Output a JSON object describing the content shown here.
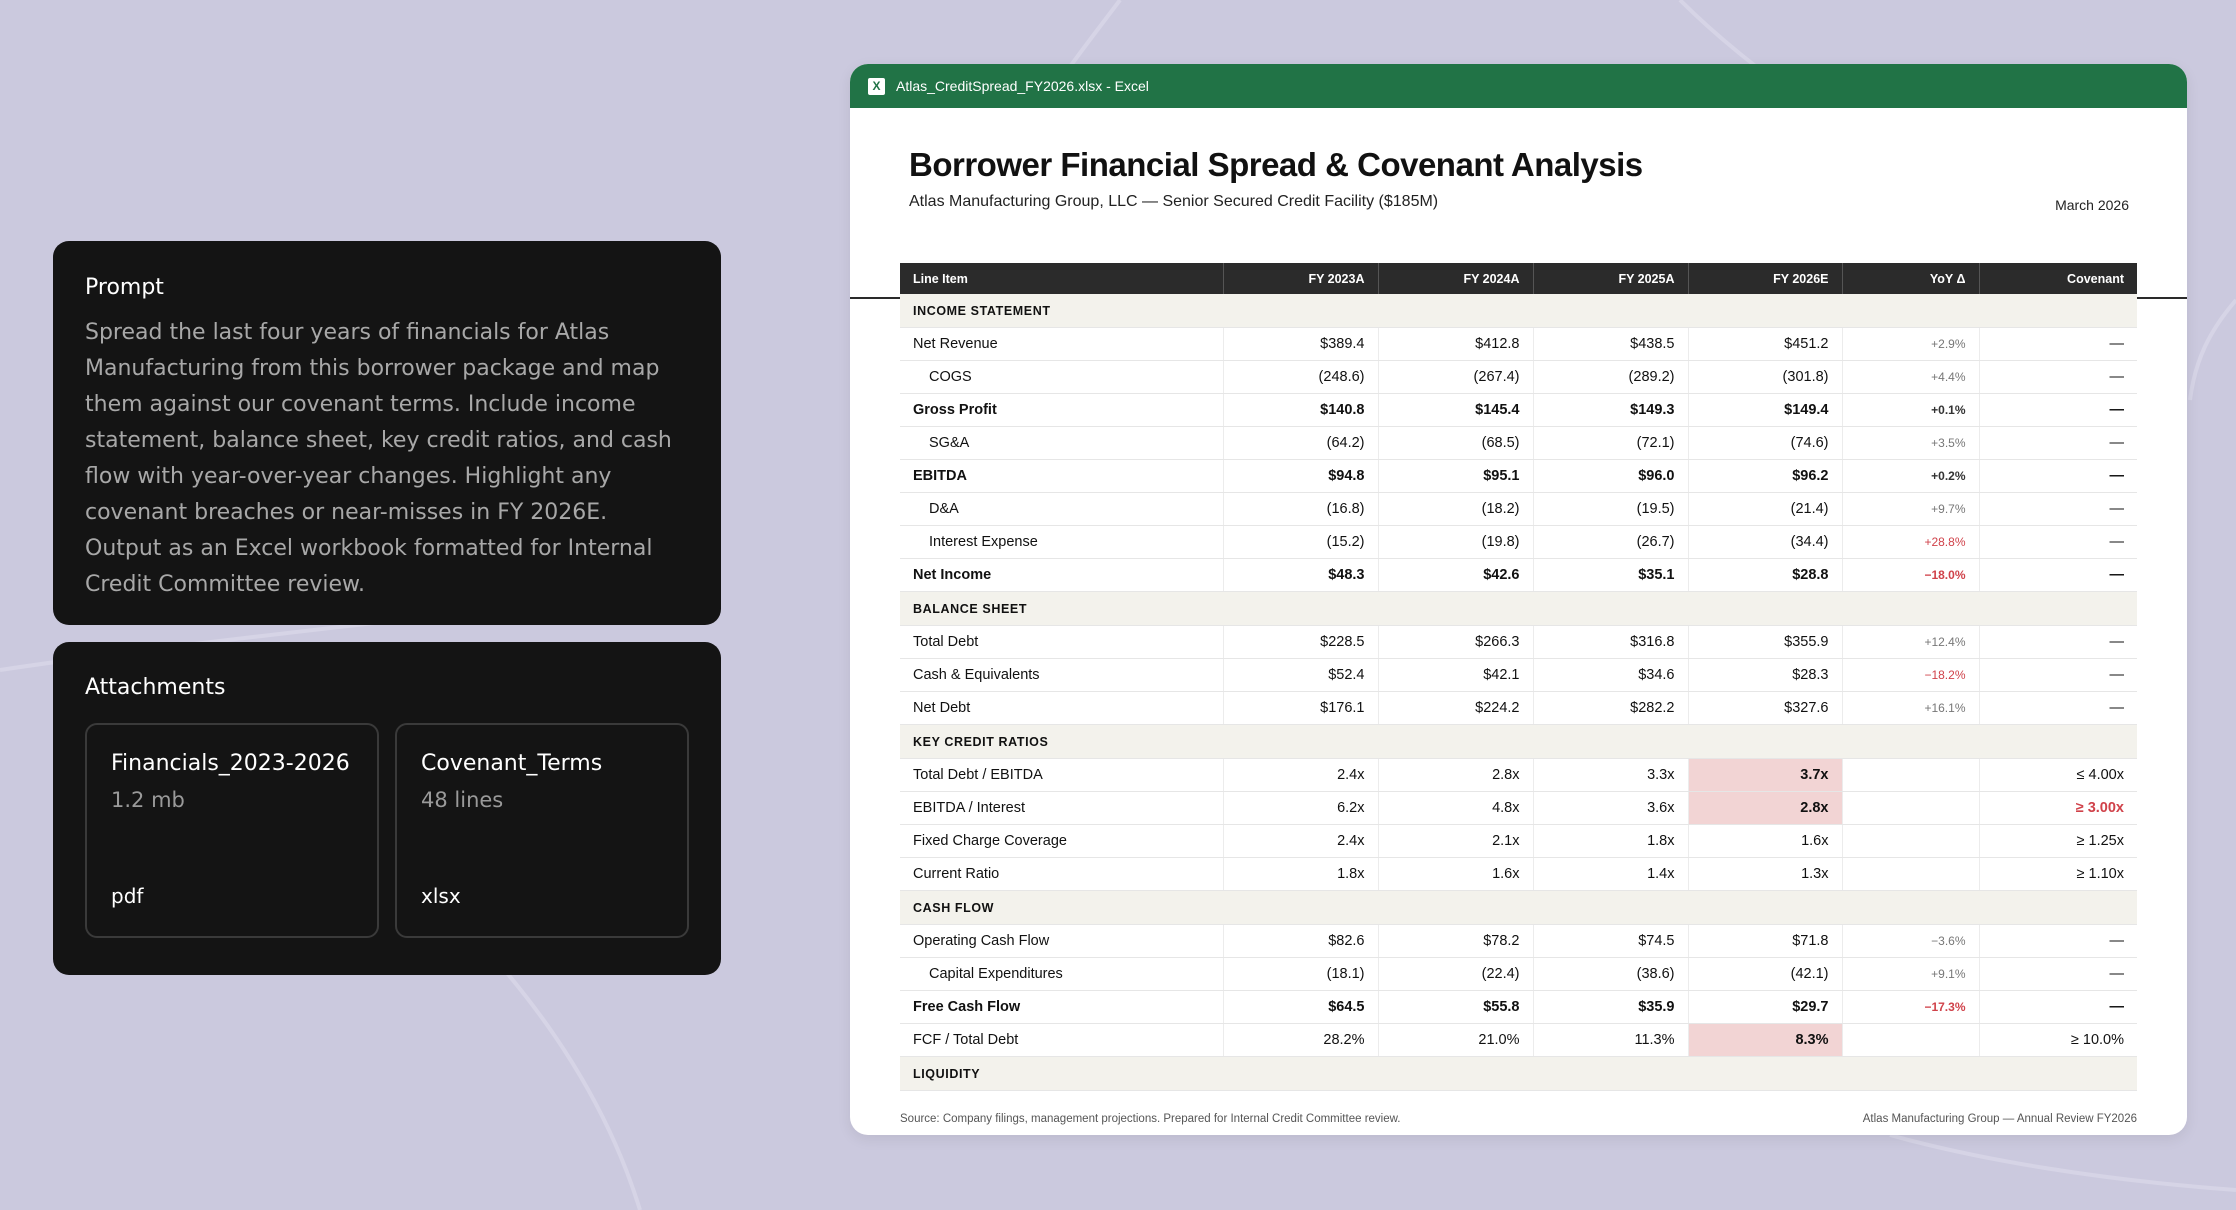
{
  "prompt": {
    "title": "Prompt",
    "text": "Spread the last four years of financials for Atlas Manufacturing from this borrower package and map them against our covenant terms. Include income statement, balance sheet, key credit ratios, and cash flow with year-over-year changes. Highlight any covenant breaches or near-misses in FY 2026E. Output as an Excel workbook formatted for Internal Credit Committee review."
  },
  "attachments": {
    "title": "Attachments",
    "items": [
      {
        "name": "Financials_2023-2026",
        "meta": "1.2 mb",
        "type": "pdf"
      },
      {
        "name": "Covenant_Terms",
        "meta": "48 lines",
        "type": "xlsx"
      }
    ]
  },
  "window": {
    "title": "Atlas_CreditSpread_FY2026.xlsx - Excel",
    "app_icon": "excel-icon",
    "brand_color": "#217346"
  },
  "doc": {
    "title": "Borrower Financial Spread & Covenant Analysis",
    "subtitle": "Atlas Manufacturing Group, LLC — Senior Secured Credit Facility ($185M)",
    "date": "March 2026"
  },
  "table": {
    "headers": [
      "Line Item",
      "FY 2023A",
      "FY 2024A",
      "FY 2025A",
      "FY 2026E",
      "YoY Δ",
      "Covenant"
    ],
    "rows": [
      {
        "kind": "section",
        "label": "INCOME STATEMENT"
      },
      {
        "kind": "row",
        "label": "Net Revenue",
        "values": [
          "$389.4",
          "$412.8",
          "$438.5",
          "$451.2"
        ],
        "yoy": "+2.9%",
        "covenant": "—"
      },
      {
        "kind": "indent",
        "label": "COGS",
        "values": [
          "(248.6)",
          "(267.4)",
          "(289.2)",
          "(301.8)"
        ],
        "yoy": "+4.4%",
        "covenant": "—"
      },
      {
        "kind": "bold",
        "label": "Gross Profit",
        "values": [
          "$140.8",
          "$145.4",
          "$149.3",
          "$149.4"
        ],
        "yoy": "+0.1%",
        "covenant": "—"
      },
      {
        "kind": "indent",
        "label": "SG&A",
        "values": [
          "(64.2)",
          "(68.5)",
          "(72.1)",
          "(74.6)"
        ],
        "yoy": "+3.5%",
        "covenant": "—"
      },
      {
        "kind": "bold",
        "label": "EBITDA",
        "values": [
          "$94.8",
          "$95.1",
          "$96.0",
          "$96.2"
        ],
        "yoy": "+0.2%",
        "covenant": "—"
      },
      {
        "kind": "indent",
        "label": "D&A",
        "values": [
          "(16.8)",
          "(18.2)",
          "(19.5)",
          "(21.4)"
        ],
        "yoy": "+9.7%",
        "covenant": "—"
      },
      {
        "kind": "indent",
        "label": "Interest Expense",
        "values": [
          "(15.2)",
          "(19.8)",
          "(26.7)",
          "(34.4)"
        ],
        "yoy": "+28.8%",
        "yoy_neg": true,
        "covenant": "—"
      },
      {
        "kind": "bold",
        "label": "Net Income",
        "values": [
          "$48.3",
          "$42.6",
          "$35.1",
          "$28.8"
        ],
        "yoy": "−18.0%",
        "yoy_neg": true,
        "covenant": "—"
      },
      {
        "kind": "section",
        "label": "BALANCE SHEET"
      },
      {
        "kind": "row",
        "label": "Total Debt",
        "values": [
          "$228.5",
          "$266.3",
          "$316.8",
          "$355.9"
        ],
        "yoy": "+12.4%",
        "covenant": "—"
      },
      {
        "kind": "row",
        "label": "Cash & Equivalents",
        "values": [
          "$52.4",
          "$42.1",
          "$34.6",
          "$28.3"
        ],
        "yoy": "−18.2%",
        "yoy_neg": true,
        "covenant": "—"
      },
      {
        "kind": "row",
        "label": "Net Debt",
        "values": [
          "$176.1",
          "$224.2",
          "$282.2",
          "$327.6"
        ],
        "yoy": "+16.1%",
        "covenant": "—"
      },
      {
        "kind": "section",
        "label": "KEY CREDIT RATIOS"
      },
      {
        "kind": "row",
        "label": "Total Debt / EBITDA",
        "values": [
          "2.4x",
          "2.8x",
          "3.3x",
          "3.7x"
        ],
        "yoy": "",
        "covenant": "≤ 4.00x",
        "breach26": true
      },
      {
        "kind": "row",
        "label": "EBITDA / Interest",
        "values": [
          "6.2x",
          "4.8x",
          "3.6x",
          "2.8x"
        ],
        "yoy": "",
        "covenant": "≥ 3.00x",
        "breach26": true,
        "cov_breach": true
      },
      {
        "kind": "row",
        "label": "Fixed Charge Coverage",
        "values": [
          "2.4x",
          "2.1x",
          "1.8x",
          "1.6x"
        ],
        "yoy": "",
        "covenant": "≥ 1.25x"
      },
      {
        "kind": "row",
        "label": "Current Ratio",
        "values": [
          "1.8x",
          "1.6x",
          "1.4x",
          "1.3x"
        ],
        "yoy": "",
        "covenant": "≥ 1.10x"
      },
      {
        "kind": "section",
        "label": "CASH FLOW"
      },
      {
        "kind": "row",
        "label": "Operating Cash Flow",
        "values": [
          "$82.6",
          "$78.2",
          "$74.5",
          "$71.8"
        ],
        "yoy": "−3.6%",
        "covenant": "—"
      },
      {
        "kind": "indent",
        "label": "Capital Expenditures",
        "values": [
          "(18.1)",
          "(22.4)",
          "(38.6)",
          "(42.1)"
        ],
        "yoy": "+9.1%",
        "covenant": "—"
      },
      {
        "kind": "bold",
        "label": "Free Cash Flow",
        "values": [
          "$64.5",
          "$55.8",
          "$35.9",
          "$29.7"
        ],
        "yoy": "−17.3%",
        "yoy_neg": true,
        "covenant": "—"
      },
      {
        "kind": "row",
        "label": "FCF / Total Debt",
        "values": [
          "28.2%",
          "21.0%",
          "11.3%",
          "8.3%"
        ],
        "yoy": "",
        "covenant": "≥ 10.0%",
        "breach26": true
      },
      {
        "kind": "section",
        "label": "LIQUIDITY"
      }
    ]
  },
  "footer": {
    "left": "Source: Company filings, management projections. Prepared for Internal Credit Committee review.",
    "right": "Atlas Manufacturing Group — Annual Review FY2026"
  }
}
